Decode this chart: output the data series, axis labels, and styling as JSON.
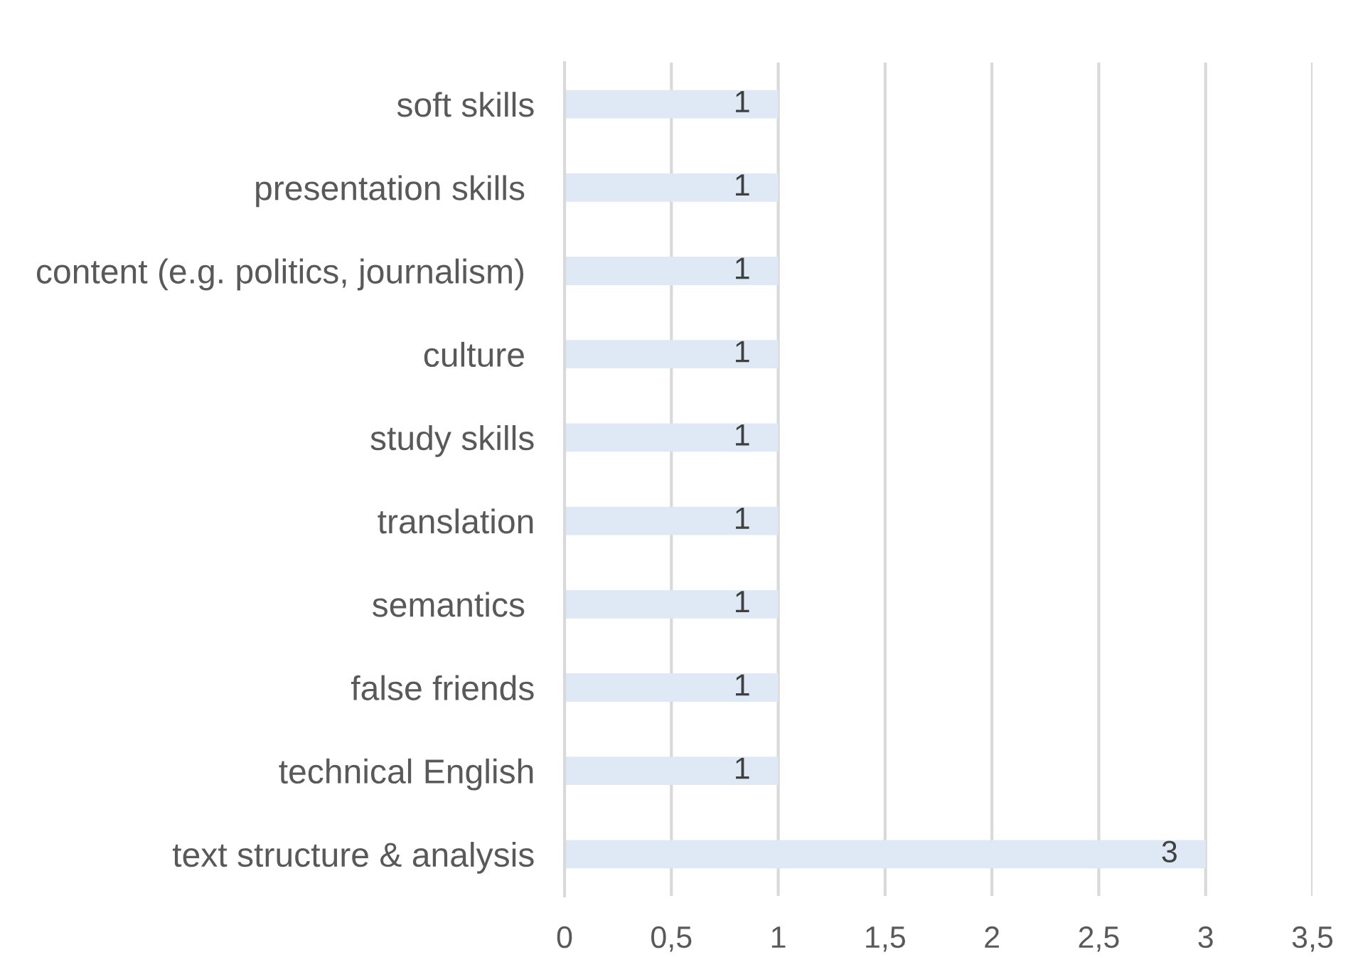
{
  "chart_data": {
    "type": "bar",
    "orientation": "horizontal",
    "categories": [
      "soft skills",
      "presentation skills ",
      "content (e.g. politics, journalism) ",
      "culture ",
      "study skills",
      "translation",
      "semantics ",
      "false friends",
      "technical English",
      "text structure & analysis"
    ],
    "values": [
      1,
      1,
      1,
      1,
      1,
      1,
      1,
      1,
      1,
      3
    ],
    "color": "#dee9f5",
    "xlim": [
      0,
      3.5
    ],
    "xticks": [
      0,
      {
        "value": 0.5,
        "label": "0,5"
      },
      1,
      {
        "value": 1.5,
        "label": "1,5"
      },
      2,
      {
        "value": 2.5,
        "label": "2,5"
      },
      3,
      {
        "value": 3.5,
        "label": "3,5"
      }
    ],
    "grid": "x",
    "data_labels": true
  }
}
